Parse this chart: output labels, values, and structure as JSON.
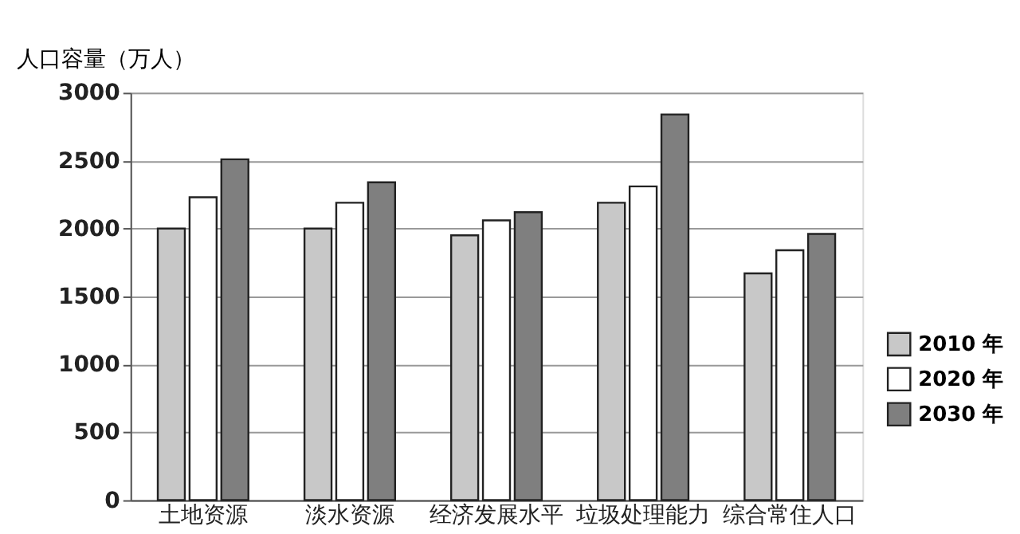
{
  "chart_data": {
    "type": "bar",
    "ylabel": "人口容量（万人）",
    "categories": [
      "土地资源",
      "淡水资源",
      "经济发展水平",
      "垃圾处理能力",
      "综合常住人口"
    ],
    "series": [
      {
        "name": "2010 年",
        "color": "#c8c8c8",
        "values": [
          2000,
          2000,
          1950,
          2190,
          1670
        ]
      },
      {
        "name": "2020 年",
        "color": "#ffffff",
        "values": [
          2230,
          2190,
          2060,
          2310,
          1840
        ]
      },
      {
        "name": "2030 年",
        "color": "#7f7f7f",
        "values": [
          2510,
          2340,
          2120,
          2840,
          1960
        ]
      }
    ],
    "ylim": [
      0,
      3000
    ],
    "yticks": [
      0,
      500,
      1000,
      1500,
      2000,
      2500,
      3000
    ],
    "grid": "y",
    "legend": "right"
  }
}
